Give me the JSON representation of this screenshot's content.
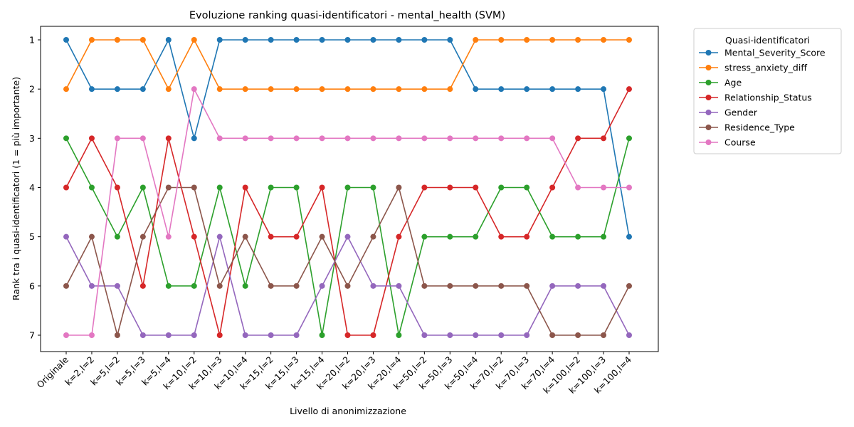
{
  "chart_data": {
    "type": "line",
    "title": "Evoluzione ranking quasi-identificatori - mental_health (SVM)",
    "xlabel": "Livello di anonimizzazione",
    "ylabel": "Rank tra i quasi-identificatori (1 = più importante)",
    "y_inverted": true,
    "ylim": [
      1,
      7
    ],
    "yticks": [
      "1",
      "2",
      "3",
      "4",
      "5",
      "6",
      "7"
    ],
    "legend_title": "Quasi-identificatori",
    "legend_position": "outside-top-right",
    "grid": false,
    "categories": [
      "Originale",
      "k=2,l=2",
      "k=5,l=2",
      "k=5,l=3",
      "k=5,l=4",
      "k=10,l=2",
      "k=10,l=3",
      "k=10,l=4",
      "k=15,l=2",
      "k=15,l=3",
      "k=15,l=4",
      "k=20,l=2",
      "k=20,l=3",
      "k=20,l=4",
      "k=50,l=2",
      "k=50,l=3",
      "k=50,l=4",
      "k=70,l=2",
      "k=70,l=3",
      "k=70,l=4",
      "k=100,l=2",
      "k=100,l=3",
      "k=100,l=4"
    ],
    "series": [
      {
        "name": "Mental_Severity_Score",
        "color": "#1f77b4",
        "values": [
          1,
          2,
          2,
          2,
          1,
          3,
          1,
          1,
          1,
          1,
          1,
          1,
          1,
          1,
          1,
          1,
          2,
          2,
          2,
          2,
          2,
          2,
          5
        ]
      },
      {
        "name": "stress_anxiety_diff",
        "color": "#ff7f0e",
        "values": [
          2,
          1,
          1,
          1,
          2,
          1,
          2,
          2,
          2,
          2,
          2,
          2,
          2,
          2,
          2,
          2,
          1,
          1,
          1,
          1,
          1,
          1,
          1
        ]
      },
      {
        "name": "Age",
        "color": "#2ca02c",
        "values": [
          3,
          4,
          5,
          4,
          6,
          6,
          4,
          6,
          4,
          4,
          7,
          4,
          4,
          7,
          5,
          5,
          5,
          4,
          4,
          5,
          5,
          5,
          3
        ]
      },
      {
        "name": "Relationship_Status",
        "color": "#d62728",
        "values": [
          4,
          3,
          4,
          6,
          3,
          5,
          7,
          4,
          5,
          5,
          4,
          7,
          7,
          5,
          4,
          4,
          4,
          5,
          5,
          4,
          3,
          3,
          2
        ]
      },
      {
        "name": "Gender",
        "color": "#9467bd",
        "values": [
          5,
          6,
          6,
          7,
          7,
          7,
          5,
          7,
          7,
          7,
          6,
          5,
          6,
          6,
          7,
          7,
          7,
          7,
          7,
          6,
          6,
          6,
          7
        ]
      },
      {
        "name": "Residence_Type",
        "color": "#8c564b",
        "values": [
          6,
          5,
          7,
          5,
          4,
          4,
          6,
          5,
          6,
          6,
          5,
          6,
          5,
          4,
          6,
          6,
          6,
          6,
          6,
          7,
          7,
          7,
          6
        ]
      },
      {
        "name": "Course",
        "color": "#e377c2",
        "values": [
          7,
          7,
          3,
          3,
          5,
          2,
          3,
          3,
          3,
          3,
          3,
          3,
          3,
          3,
          3,
          3,
          3,
          3,
          3,
          3,
          4,
          4,
          4
        ]
      }
    ]
  }
}
